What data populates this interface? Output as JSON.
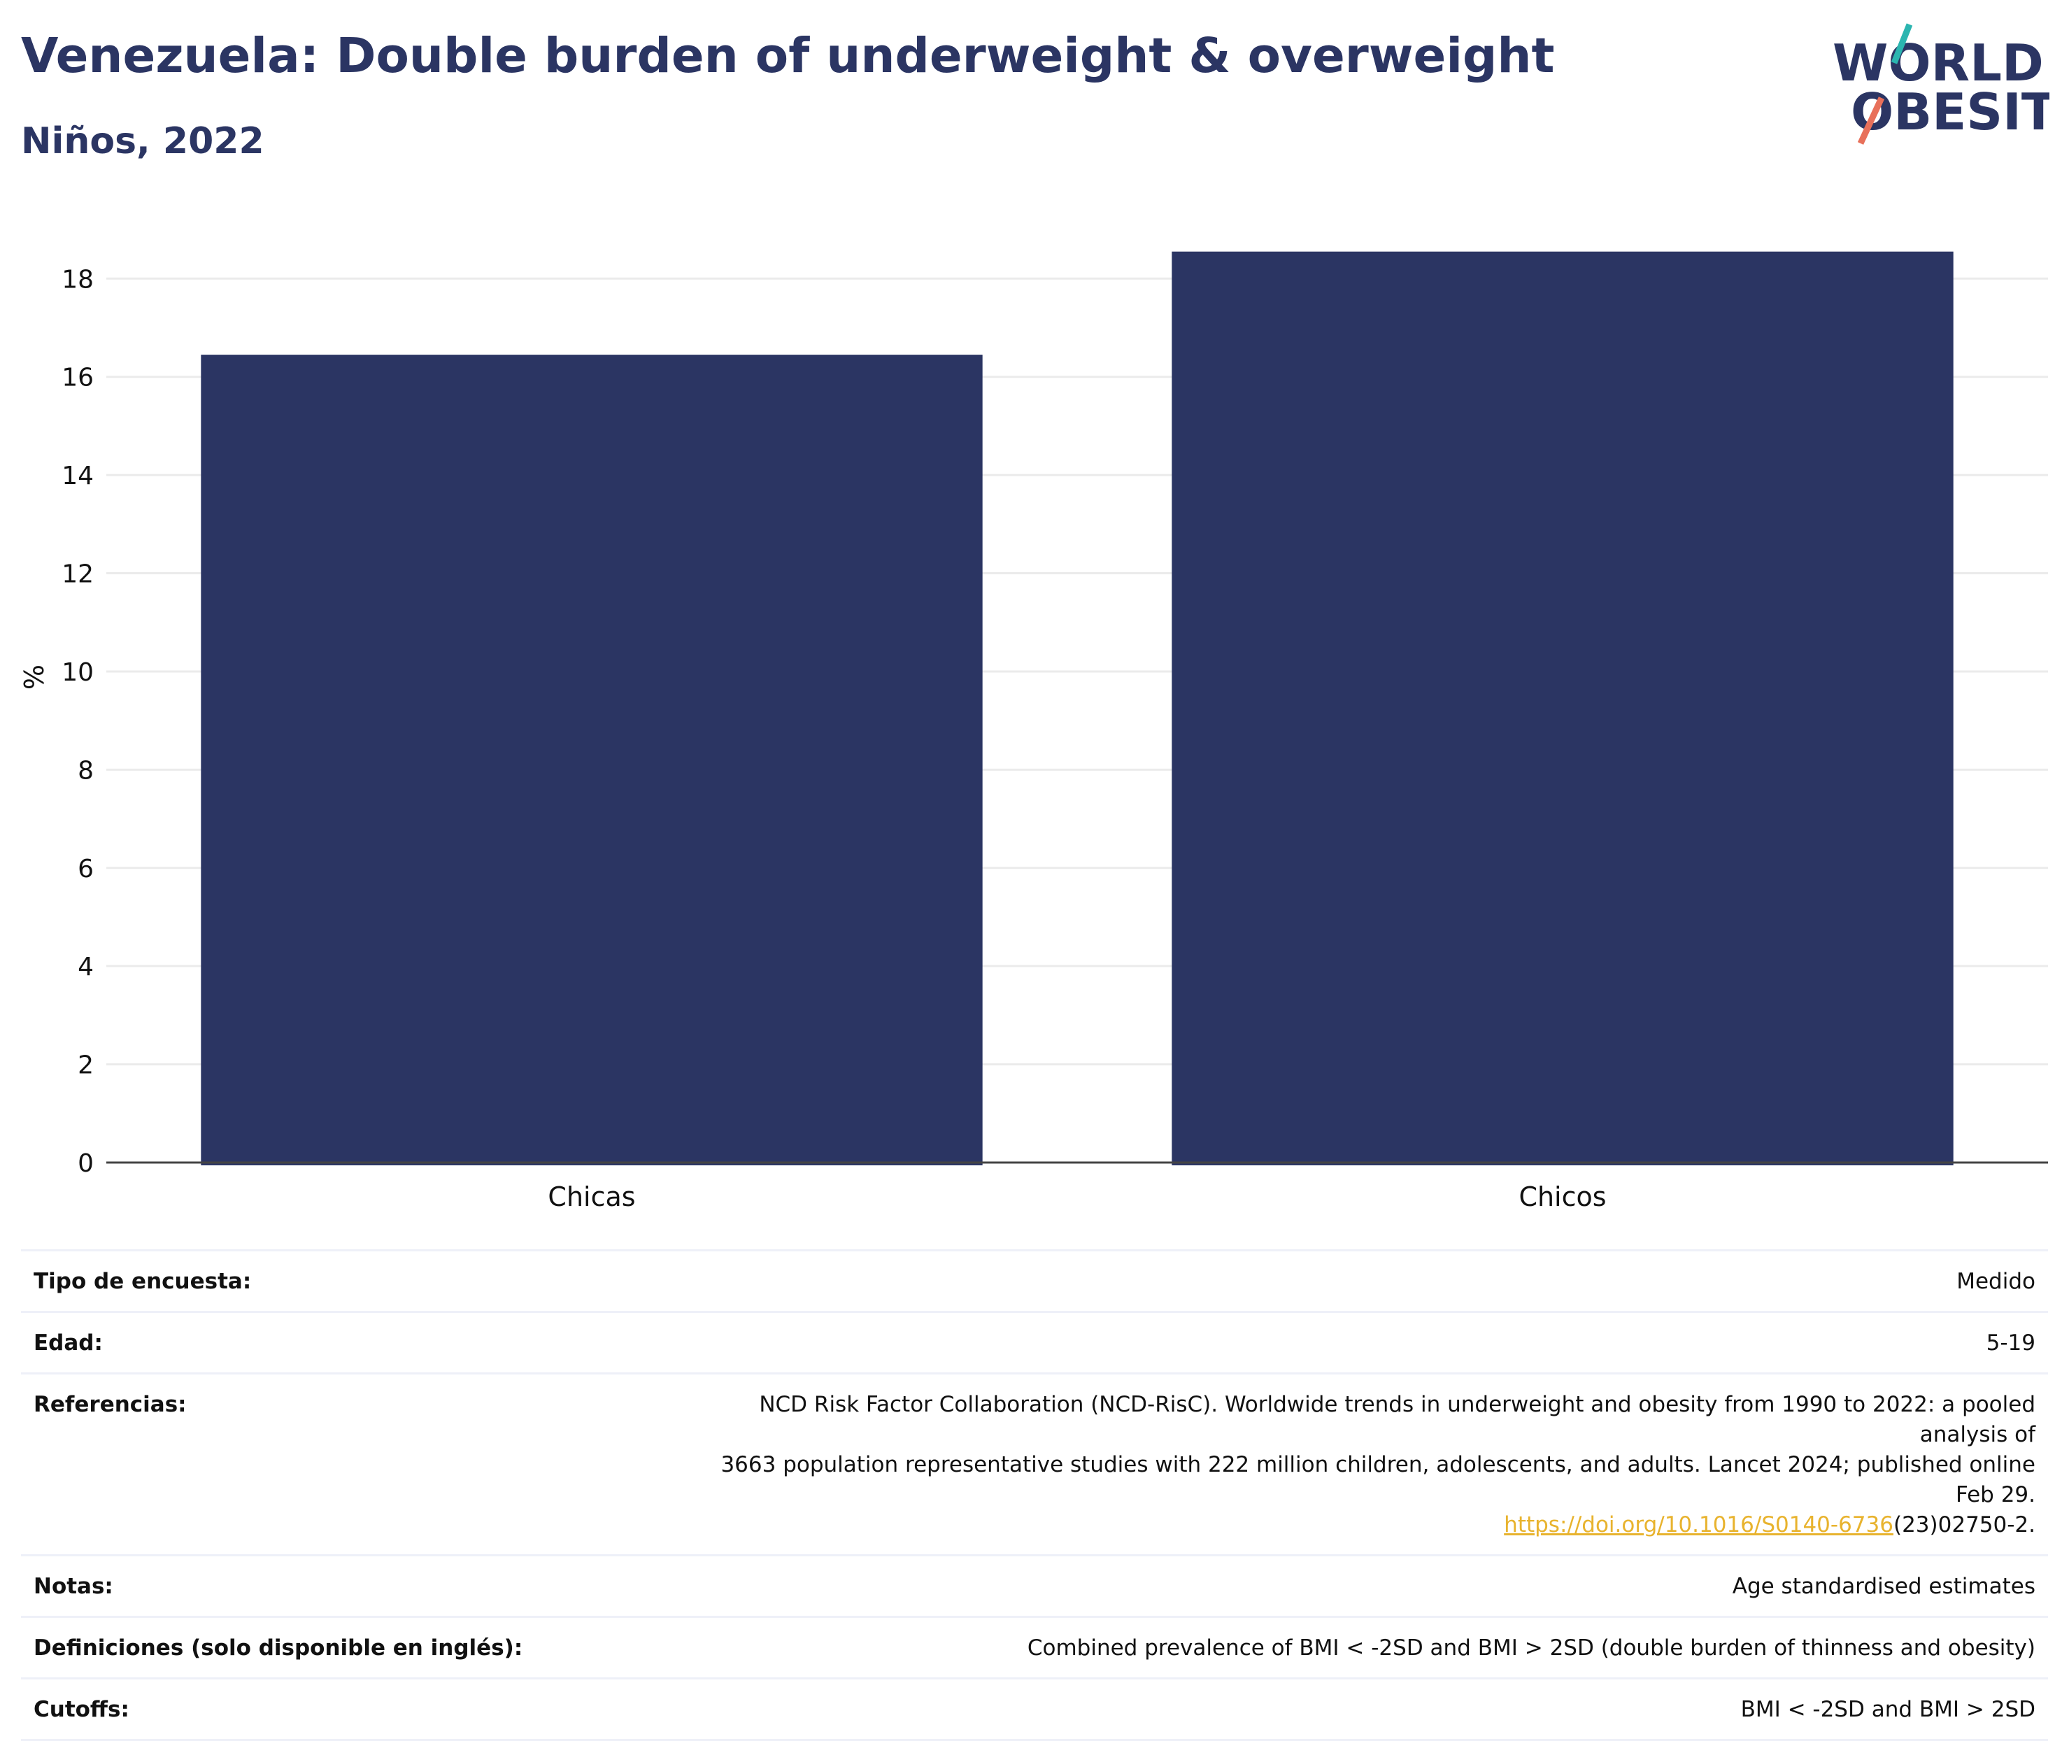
{
  "header": {
    "title": "Venezuela: Double burden of underweight & overweight",
    "subtitle": "Niños, 2022"
  },
  "logo": {
    "line1": "WORLD",
    "line2": "OBESITY",
    "text_color": "#2b3563",
    "slash_colors": [
      "#2bb5b0",
      "#e8705a"
    ]
  },
  "chart_data": {
    "type": "bar",
    "categories": [
      "Chicas",
      "Chicos"
    ],
    "values": [
      16.45,
      18.55
    ],
    "ylabel": "%",
    "ylim": [
      0,
      19.4
    ],
    "yticks": [
      0,
      2,
      4,
      6,
      8,
      10,
      12,
      14,
      16,
      18
    ],
    "grid": true,
    "bar_color": "#2b3563"
  },
  "metadata": {
    "rows": [
      {
        "label": "Tipo de encuesta:",
        "value": "Medido"
      },
      {
        "label": "Edad:",
        "value": "5-19"
      },
      {
        "label": "Referencias:",
        "value_lines": [
          "NCD Risk Factor Collaboration (NCD-RisC). Worldwide trends in underweight and obesity from 1990 to 2022: a pooled analysis of",
          "3663 population representative studies with 222 million children, adolescents, and adults. Lancet 2024; published online Feb 29."
        ],
        "link_text": "https://doi.org/10.1016/S0140-6736",
        "link_suffix": "(23)02750-2."
      },
      {
        "label": "Notas:",
        "value": "Age standardised estimates"
      },
      {
        "label": "Definiciones (solo disponible en inglés):",
        "value": "Combined prevalence of BMI < -2SD and BMI > 2SD (double burden of thinness and obesity)"
      },
      {
        "label": "Cutoffs:",
        "value": "BMI < -2SD and BMI > 2SD"
      }
    ]
  }
}
